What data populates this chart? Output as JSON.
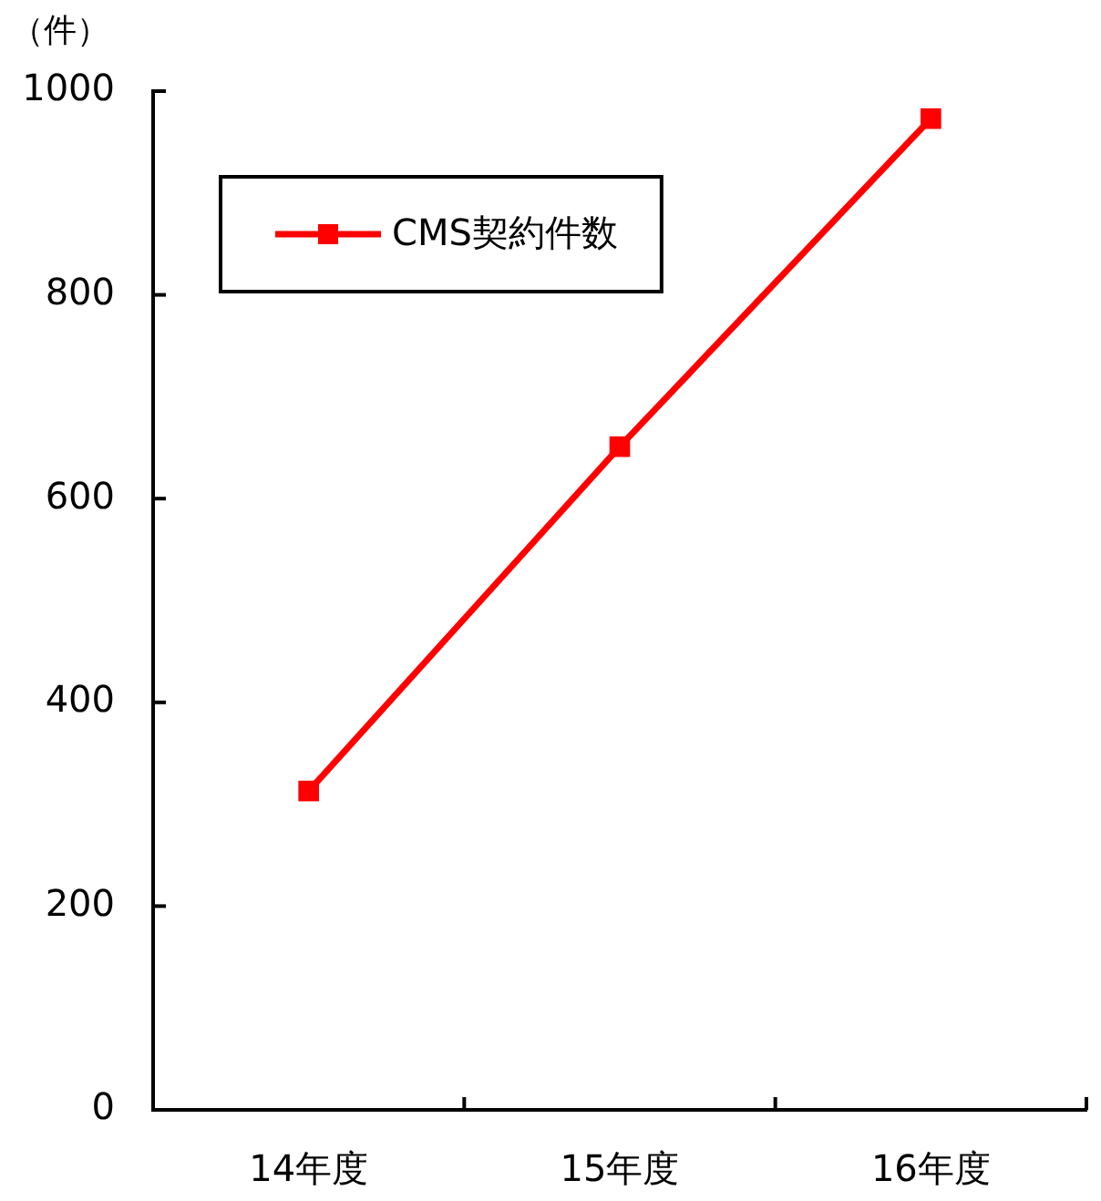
{
  "chart_data": {
    "type": "line",
    "ylabel": "（件）",
    "categories": [
      "14年度",
      "15年度",
      "16年度"
    ],
    "series": [
      {
        "name": "CMS契約件数",
        "color": "#ff0000",
        "values": [
          313,
          651,
          973
        ]
      }
    ],
    "ylim": [
      0,
      1000
    ],
    "yticks": [
      0,
      200,
      400,
      600,
      800,
      1000
    ],
    "legend": "top left",
    "marker": "square",
    "line_style": "solid"
  }
}
